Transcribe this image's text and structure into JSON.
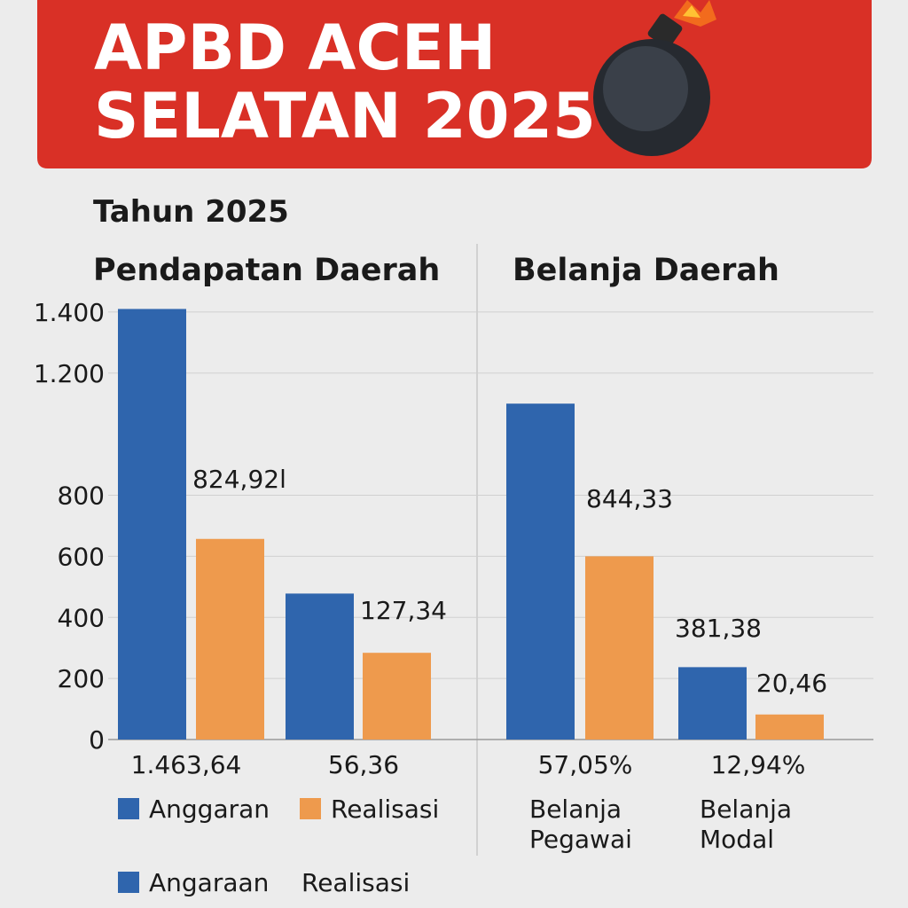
{
  "header": {
    "title_lines": [
      "APBD ACEH",
      "SELATAN 2025"
    ]
  },
  "subtitle": "Tahun 2025",
  "chart_data": [
    {
      "type": "bar",
      "title": "Pendapatan Daerah",
      "categories": [
        "1.463,64",
        "56,36"
      ],
      "series": [
        {
          "name": "Anggaran",
          "color": "#2f65ad",
          "values": [
            1410,
            478
          ]
        },
        {
          "name": "Realisasi",
          "color": "#ee9a4d",
          "values": [
            657,
            284
          ]
        }
      ],
      "annotations": [
        "824,92l",
        "127,34"
      ],
      "ylim": [
        0,
        1420
      ],
      "yticks": [
        0,
        200,
        400,
        600,
        800,
        {
          "value": 1200,
          "label": "1.200"
        },
        {
          "value": 1400,
          "label": "1.400"
        }
      ],
      "grid": true,
      "legend": "bottom"
    },
    {
      "type": "bar",
      "title": "Belanja Daerah",
      "categories": [
        "Belanja Pegawai",
        "Belanja Modal"
      ],
      "category_notes": [
        "57,05%",
        "12,94%"
      ],
      "series": [
        {
          "color": "#2f65ad",
          "values": [
            1100,
            237
          ]
        },
        {
          "color": "#ee9a4d",
          "values": [
            600,
            82
          ]
        }
      ],
      "annotations": [
        "844,33",
        "381,38",
        "20,46"
      ],
      "ylim": [
        0,
        1420
      ]
    }
  ],
  "footer_legend": [
    "Angaraan",
    "Realisasi"
  ]
}
